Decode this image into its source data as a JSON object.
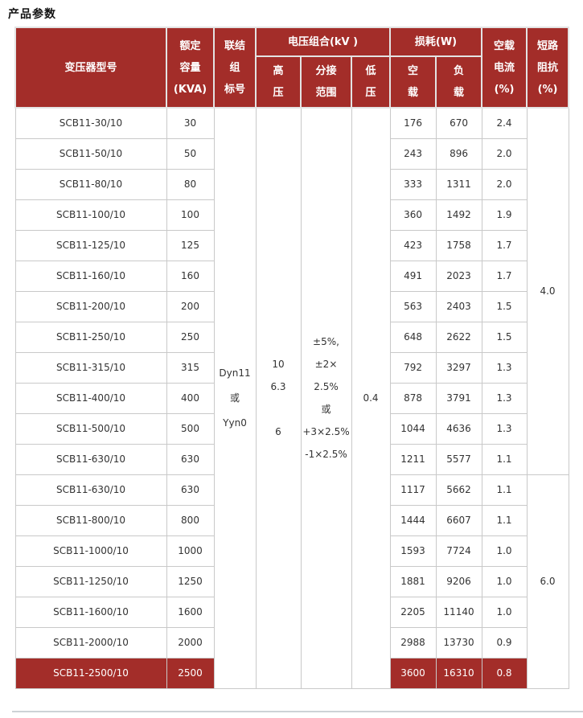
{
  "page_title": "产品参数",
  "colors": {
    "header_bg": "#a32d29",
    "header_text": "#ffffff",
    "body_text": "#333333",
    "border_header": "#e3e3e3",
    "border_body": "#c9c9c9",
    "divider": "#cdd2d6"
  },
  "table": {
    "header": {
      "model": "变压器型号",
      "capacity": "额定\n容量\n(KVA)",
      "vector_group": "联结\n组\n标号",
      "voltage_group": "电压组合(kV )",
      "hv": "高\n压",
      "tap_range": "分接\n范围",
      "lv": "低\n压",
      "loss_group": "损耗(W)",
      "no_load_loss": "空\n载",
      "load_loss": "负\n载",
      "no_load_current": "空载\n电流\n(%)",
      "impedance": "短路\n阻抗\n(%)"
    },
    "merged": {
      "vector_group": "Dyn11\n或\nYyn0",
      "hv": "10\n6.3\n\n6",
      "tap_range": "±5%,\n±2×\n2.5%\n或\n+3×2.5%\n-1×2.5%",
      "lv": "0.4",
      "impedance_groups": [
        {
          "value": "4.0",
          "row_start": 0,
          "row_count": 12
        },
        {
          "value": "6.0",
          "row_start": 12,
          "row_count": 7
        }
      ]
    },
    "rows": [
      {
        "model": "SCB11-30/10",
        "capacity": "30",
        "no_load_loss": "176",
        "load_loss": "670",
        "no_load_current": "2.4",
        "highlight": false
      },
      {
        "model": "SCB11-50/10",
        "capacity": "50",
        "no_load_loss": "243",
        "load_loss": "896",
        "no_load_current": "2.0",
        "highlight": false
      },
      {
        "model": "SCB11-80/10",
        "capacity": "80",
        "no_load_loss": "333",
        "load_loss": "1311",
        "no_load_current": "2.0",
        "highlight": false
      },
      {
        "model": "SCB11-100/10",
        "capacity": "100",
        "no_load_loss": "360",
        "load_loss": "1492",
        "no_load_current": "1.9",
        "highlight": false
      },
      {
        "model": "SCB11-125/10",
        "capacity": "125",
        "no_load_loss": "423",
        "load_loss": "1758",
        "no_load_current": "1.7",
        "highlight": false
      },
      {
        "model": "SCB11-160/10",
        "capacity": "160",
        "no_load_loss": "491",
        "load_loss": "2023",
        "no_load_current": "1.7",
        "highlight": false
      },
      {
        "model": "SCB11-200/10",
        "capacity": "200",
        "no_load_loss": "563",
        "load_loss": "2403",
        "no_load_current": "1.5",
        "highlight": false
      },
      {
        "model": "SCB11-250/10",
        "capacity": "250",
        "no_load_loss": "648",
        "load_loss": "2622",
        "no_load_current": "1.5",
        "highlight": false
      },
      {
        "model": "SCB11-315/10",
        "capacity": "315",
        "no_load_loss": "792",
        "load_loss": "3297",
        "no_load_current": "1.3",
        "highlight": false
      },
      {
        "model": "SCB11-400/10",
        "capacity": "400",
        "no_load_loss": "878",
        "load_loss": "3791",
        "no_load_current": "1.3",
        "highlight": false
      },
      {
        "model": "SCB11-500/10",
        "capacity": "500",
        "no_load_loss": "1044",
        "load_loss": "4636",
        "no_load_current": "1.3",
        "highlight": false
      },
      {
        "model": "SCB11-630/10",
        "capacity": "630",
        "no_load_loss": "1211",
        "load_loss": "5577",
        "no_load_current": "1.1",
        "highlight": false
      },
      {
        "model": "SCB11-630/10",
        "capacity": "630",
        "no_load_loss": "1117",
        "load_loss": "5662",
        "no_load_current": "1.1",
        "highlight": false
      },
      {
        "model": "SCB11-800/10",
        "capacity": "800",
        "no_load_loss": "1444",
        "load_loss": "6607",
        "no_load_current": "1.1",
        "highlight": false
      },
      {
        "model": "SCB11-1000/10",
        "capacity": "1000",
        "no_load_loss": "1593",
        "load_loss": "7724",
        "no_load_current": "1.0",
        "highlight": false
      },
      {
        "model": "SCB11-1250/10",
        "capacity": "1250",
        "no_load_loss": "1881",
        "load_loss": "9206",
        "no_load_current": "1.0",
        "highlight": false
      },
      {
        "model": "SCB11-1600/10",
        "capacity": "1600",
        "no_load_loss": "2205",
        "load_loss": "11140",
        "no_load_current": "1.0",
        "highlight": false
      },
      {
        "model": "SCB11-2000/10",
        "capacity": "2000",
        "no_load_loss": "2988",
        "load_loss": "13730",
        "no_load_current": "0.9",
        "highlight": false
      },
      {
        "model": "SCB11-2500/10",
        "capacity": "2500",
        "no_load_loss": "3600",
        "load_loss": "16310",
        "no_load_current": "0.8",
        "highlight": true
      }
    ]
  }
}
